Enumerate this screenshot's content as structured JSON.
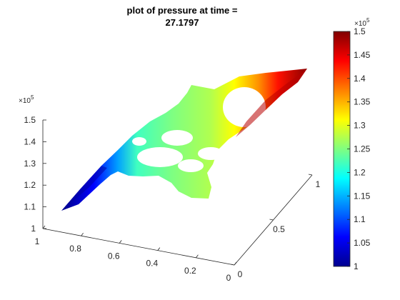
{
  "chart_data": {
    "type": "surface",
    "title_line1": "plot of pressure at time =",
    "title_line2": "27.1797",
    "grid": false,
    "colormap": "jet",
    "x_axis": {
      "ticks": [
        "0",
        "0.5",
        "1"
      ],
      "lim": [
        0,
        1
      ]
    },
    "y_axis": {
      "ticks": [
        "1",
        "0.8",
        "0.6",
        "0.4",
        "0.2",
        "0"
      ],
      "lim": [
        0,
        1
      ]
    },
    "z_axis": {
      "ticks": [
        "1",
        "1.1",
        "1.2",
        "1.3",
        "1.4",
        "1.5"
      ],
      "lim": [
        1,
        1.5
      ],
      "exponent_base": "×10",
      "exponent_power": "5"
    },
    "colorbar": {
      "ticks": [
        "1",
        "1.05",
        "1.1",
        "1.15",
        "1.2",
        "1.25",
        "1.3",
        "1.35",
        "1.4",
        "1.45",
        "1.5"
      ],
      "lim": [
        1,
        1.5
      ],
      "exponent_base": "×10",
      "exponent_power": "5",
      "colors": [
        "#00008f",
        "#0000ff",
        "#0080ff",
        "#00ffff",
        "#80ff80",
        "#ffff00",
        "#ff8000",
        "#ff0000",
        "#800000"
      ]
    },
    "surface": {
      "holes": 6,
      "pressure_min": 1.08,
      "pressure_max": 1.5,
      "pressure_along_channel": [
        {
          "position": 0.0,
          "value": 1.08
        },
        {
          "position": 0.25,
          "value": 1.18
        },
        {
          "position": 0.45,
          "value": 1.24
        },
        {
          "position": 0.65,
          "value": 1.27
        },
        {
          "position": 0.8,
          "value": 1.3
        },
        {
          "position": 0.9,
          "value": 1.42
        },
        {
          "position": 1.0,
          "value": 1.5
        }
      ]
    }
  }
}
